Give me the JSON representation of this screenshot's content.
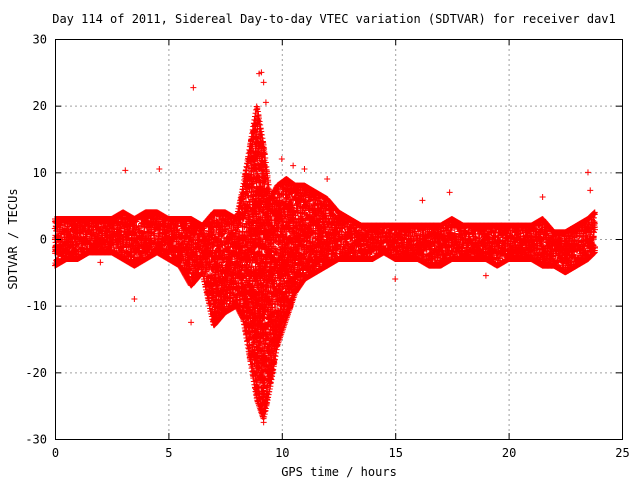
{
  "chart_data": {
    "type": "scatter",
    "title": "Day 114 of 2011, Sidereal Day-to-day VTEC variation (SDTVAR) for receiver dav1",
    "xlabel": "GPS time / hours",
    "ylabel": "SDTVAR / TECUs",
    "xlim": [
      0,
      25
    ],
    "ylim": [
      -30,
      30
    ],
    "xticks": [
      0,
      5,
      10,
      15,
      20,
      25
    ],
    "yticks": [
      -30,
      -20,
      -10,
      0,
      10,
      20,
      30
    ],
    "grid": true,
    "legend": "none",
    "marker": "plus",
    "color": "#ff0000",
    "envelope": {
      "description": "dense band of points, per-time spread in TECU",
      "x": [
        0.0,
        0.5,
        1.0,
        1.5,
        2.0,
        2.5,
        3.0,
        3.5,
        4.0,
        4.5,
        5.0,
        5.5,
        6.0,
        6.5,
        7.0,
        7.5,
        8.0,
        8.3,
        8.6,
        8.9,
        9.2,
        9.5,
        9.8,
        10.2,
        10.6,
        11.0,
        11.5,
        12.0,
        12.5,
        13.0,
        13.5,
        14.0,
        14.5,
        15.0,
        15.5,
        16.0,
        16.5,
        17.0,
        17.5,
        18.0,
        18.5,
        19.0,
        19.5,
        20.0,
        20.5,
        21.0,
        21.5,
        22.0,
        22.5,
        23.0,
        23.5,
        23.8
      ],
      "ymin": [
        -4,
        -3,
        -3,
        -2,
        -2,
        -2,
        -3,
        -4,
        -3,
        -2,
        -3,
        -4,
        -7,
        -5,
        -13,
        -11,
        -10,
        -12,
        -18,
        -24,
        -27,
        -22,
        -16,
        -12,
        -8,
        -6,
        -5,
        -4,
        -3,
        -3,
        -3,
        -3,
        -2,
        -3,
        -3,
        -3,
        -4,
        -4,
        -3,
        -3,
        -3,
        -3,
        -4,
        -3,
        -3,
        -3,
        -4,
        -4,
        -5,
        -4,
        -3,
        -2
      ],
      "ymax": [
        3,
        3,
        3,
        3,
        3,
        3,
        4,
        3,
        4,
        4,
        3,
        3,
        3,
        2,
        4,
        4,
        3,
        8,
        14,
        20,
        14,
        6,
        8,
        9,
        8,
        8,
        7,
        6,
        4,
        3,
        2,
        2,
        2,
        2,
        2,
        2,
        2,
        2,
        3,
        2,
        2,
        2,
        2,
        2,
        2,
        2,
        3,
        1,
        1,
        2,
        3,
        4
      ]
    },
    "outliers": {
      "x": [
        3.1,
        4.6,
        6.1,
        9.0,
        9.1,
        9.2,
        9.3,
        10.0,
        10.5,
        11.0,
        12.0,
        16.2,
        17.4,
        21.5,
        23.5,
        23.6,
        2.0,
        3.5,
        6.0,
        7.0,
        9.1,
        9.2,
        9.3,
        15.0,
        19.0
      ],
      "y": [
        10.3,
        10.5,
        22.7,
        24.8,
        25.0,
        23.5,
        20.5,
        12.0,
        11.0,
        10.5,
        9.0,
        5.8,
        7.0,
        6.3,
        10.0,
        7.3,
        -3.5,
        -9.0,
        -12.5,
        -12.0,
        -26.0,
        -27.5,
        -24.0,
        -6.0,
        -5.5
      ]
    }
  }
}
